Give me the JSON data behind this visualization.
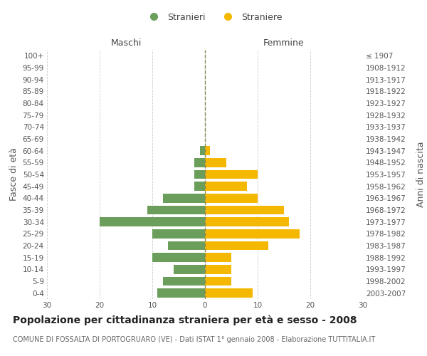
{
  "age_groups": [
    "0-4",
    "5-9",
    "10-14",
    "15-19",
    "20-24",
    "25-29",
    "30-34",
    "35-39",
    "40-44",
    "45-49",
    "50-54",
    "55-59",
    "60-64",
    "65-69",
    "70-74",
    "75-79",
    "80-84",
    "85-89",
    "90-94",
    "95-99",
    "100+"
  ],
  "birth_years": [
    "2003-2007",
    "1998-2002",
    "1993-1997",
    "1988-1992",
    "1983-1987",
    "1978-1982",
    "1973-1977",
    "1968-1972",
    "1963-1967",
    "1958-1962",
    "1953-1957",
    "1948-1952",
    "1943-1947",
    "1938-1942",
    "1933-1937",
    "1928-1932",
    "1923-1927",
    "1918-1922",
    "1913-1917",
    "1908-1912",
    "≤ 1907"
  ],
  "males": [
    9,
    8,
    6,
    10,
    7,
    10,
    20,
    11,
    8,
    2,
    2,
    2,
    1,
    0,
    0,
    0,
    0,
    0,
    0,
    0,
    0
  ],
  "females": [
    9,
    5,
    5,
    5,
    12,
    18,
    16,
    15,
    10,
    8,
    10,
    4,
    1,
    0,
    0,
    0,
    0,
    0,
    0,
    0,
    0
  ],
  "male_color": "#6a9e5a",
  "female_color": "#f5b800",
  "male_label": "Stranieri",
  "female_label": "Straniere",
  "xlabel_left": "Maschi",
  "xlabel_right": "Femmine",
  "ylabel_left": "Fasce di età",
  "ylabel_right": "Anni di nascita",
  "xlim": 30,
  "title": "Popolazione per cittadinanza straniera per età e sesso - 2008",
  "subtitle": "COMUNE DI FOSSALTA DI PORTOGRUARO (VE) - Dati ISTAT 1° gennaio 2008 - Elaborazione TUTTITALIA.IT",
  "background_color": "#ffffff",
  "grid_color": "#cccccc",
  "center_line_color": "#888855",
  "tick_fontsize": 7.5,
  "label_fontsize": 9,
  "title_fontsize": 10,
  "subtitle_fontsize": 7
}
